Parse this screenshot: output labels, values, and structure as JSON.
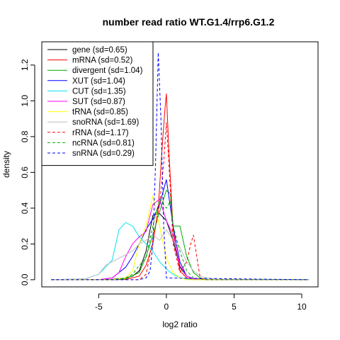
{
  "chart_data": {
    "type": "line",
    "title": "number read ratio WT.G1.4/rrp6.G1.2",
    "xlabel": "log2 ratio",
    "ylabel": "density",
    "xlim": [
      -9.2,
      11.2
    ],
    "ylim": [
      -0.04,
      1.33
    ],
    "xticks": [
      -5,
      0,
      5,
      10
    ],
    "yticks": [
      0.0,
      0.2,
      0.4,
      0.6,
      0.8,
      1.0,
      1.2
    ],
    "grid": false,
    "legend": "top-left",
    "series": [
      {
        "name": "gene (sd=0.65)",
        "color": "#000000",
        "dash": false,
        "x": [
          -8.5,
          -5,
          -4,
          -3,
          -2.5,
          -2,
          -1.5,
          -1,
          -0.5,
          0,
          0.5,
          1,
          1.5,
          2,
          3,
          10.5
        ],
        "y": [
          0,
          0,
          0.002,
          0.01,
          0.02,
          0.05,
          0.16,
          0.36,
          0.37,
          0.33,
          0.22,
          0.07,
          0.02,
          0.005,
          0,
          0
        ]
      },
      {
        "name": "mRNA (sd=0.52)",
        "color": "#ff0000",
        "dash": false,
        "x": [
          -8.5,
          -4,
          -3,
          -2,
          -1.5,
          -1,
          -0.6,
          -0.3,
          -0.1,
          0,
          0.2,
          0.5,
          1,
          1.5,
          2,
          3,
          10.5
        ],
        "y": [
          0,
          0,
          0.002,
          0.02,
          0.08,
          0.2,
          0.4,
          0.75,
          0.96,
          1.04,
          0.7,
          0.28,
          0.05,
          0.01,
          0,
          0,
          0
        ]
      },
      {
        "name": "divergent (sd=1.04)",
        "color": "#00aa00",
        "dash": false,
        "x": [
          -8.5,
          -4,
          -3,
          -2,
          -1.5,
          -1,
          -0.5,
          0,
          0.3,
          0.5,
          1,
          1.5,
          2,
          2.5,
          3,
          10.5
        ],
        "y": [
          0,
          0,
          0.005,
          0.04,
          0.13,
          0.25,
          0.38,
          0.5,
          0.48,
          0.3,
          0.3,
          0.13,
          0.04,
          0.01,
          0,
          0
        ]
      },
      {
        "name": "XUT (sd=1.04)",
        "color": "#0000ff",
        "dash": false,
        "x": [
          -8.5,
          -5,
          -4,
          -3,
          -2.5,
          -2,
          -1.5,
          -1,
          -0.5,
          0,
          0.5,
          1,
          1.5,
          2,
          3,
          10.5
        ],
        "y": [
          0,
          0,
          0.01,
          0.07,
          0.13,
          0.2,
          0.28,
          0.34,
          0.42,
          0.56,
          0.3,
          0.1,
          0.02,
          0.005,
          0,
          0
        ]
      },
      {
        "name": "CUT (sd=1.35)",
        "color": "#00e5ee",
        "dash": false,
        "x": [
          -8.5,
          -6,
          -5,
          -4.5,
          -4,
          -3.5,
          -3,
          -2.5,
          -2,
          -1.5,
          -1,
          -0.5,
          0,
          0.5,
          1,
          1.5,
          2,
          3,
          10.5
        ],
        "y": [
          0,
          0.005,
          0.03,
          0.07,
          0.11,
          0.28,
          0.32,
          0.3,
          0.24,
          0.2,
          0.16,
          0.1,
          0.06,
          0.03,
          0.01,
          0.005,
          0,
          0,
          0
        ]
      },
      {
        "name": "SUT (sd=0.87)",
        "color": "#ff00ff",
        "dash": false,
        "x": [
          -8.5,
          -5,
          -4,
          -3.5,
          -3,
          -2.5,
          -2,
          -1.5,
          -1,
          -0.5,
          0,
          0.5,
          1,
          1.5,
          2,
          3,
          10.5
        ],
        "y": [
          0,
          0,
          0.01,
          0.04,
          0.13,
          0.2,
          0.24,
          0.27,
          0.42,
          0.45,
          0.33,
          0.25,
          0.08,
          0.02,
          0.005,
          0,
          0
        ]
      },
      {
        "name": "tRNA (sd=0.85)",
        "color": "#ffff00",
        "dash": false,
        "x": [
          -8.5,
          -4,
          -3,
          -2.5,
          -2,
          -1.5,
          -1,
          -0.5,
          0,
          0.5,
          1,
          1.5,
          2,
          3,
          10.5
        ],
        "y": [
          0,
          0,
          0.01,
          0.05,
          0.2,
          0.3,
          0.47,
          0.3,
          0.12,
          0.04,
          0.01,
          0,
          0,
          0,
          0
        ]
      },
      {
        "name": "snoRNA (sd=1.69)",
        "color": "#bebebe",
        "dash": false,
        "x": [
          -8.5,
          -6,
          -5,
          -4.5,
          -4,
          -3.5,
          -3,
          -2.5,
          -2,
          -1.5,
          -1,
          -0.5,
          0,
          0.5,
          1,
          1.5,
          2,
          2.5,
          3,
          4,
          10.5
        ],
        "y": [
          0,
          0.005,
          0.03,
          0.08,
          0.1,
          0.12,
          0.14,
          0.16,
          0.2,
          0.22,
          0.25,
          0.22,
          0.28,
          0.22,
          0.18,
          0.1,
          0.05,
          0.02,
          0.01,
          0,
          0
        ]
      },
      {
        "name": "rRNA (sd=1.17)",
        "color": "#ff0000",
        "dash": true,
        "x": [
          -8.5,
          -2,
          -1.5,
          -1,
          -0.5,
          -0.2,
          0,
          0.3,
          0.5,
          1,
          1.5,
          1.8,
          2,
          2.3,
          2.5,
          3,
          10.5
        ],
        "y": [
          0,
          0,
          0.03,
          0.22,
          0.42,
          0.65,
          0.88,
          0.5,
          0.2,
          0.04,
          0.1,
          0.2,
          0.25,
          0.1,
          0.01,
          0,
          0
        ]
      },
      {
        "name": "ncRNA (sd=0.81)",
        "color": "#00aa00",
        "dash": true,
        "x": [
          -8.5,
          -4,
          -3,
          -2.5,
          -2,
          -1.5,
          -1,
          -0.5,
          0,
          0.3,
          0.5,
          1,
          1.5,
          2,
          3,
          10.5
        ],
        "y": [
          0,
          0,
          0.01,
          0.03,
          0.08,
          0.12,
          0.3,
          0.45,
          0.4,
          0.44,
          0.3,
          0.16,
          0.05,
          0.01,
          0,
          0
        ]
      },
      {
        "name": "snRNA (sd=0.29)",
        "color": "#0000ff",
        "dash": true,
        "x": [
          -8.5,
          -2,
          -1.5,
          -1.2,
          -1,
          -0.8,
          -0.6,
          -0.4,
          -0.2,
          0,
          10.5
        ],
        "y": [
          0,
          0,
          0.01,
          0.05,
          0.2,
          0.65,
          1.27,
          0.9,
          0.3,
          0.01,
          0
        ]
      }
    ]
  }
}
